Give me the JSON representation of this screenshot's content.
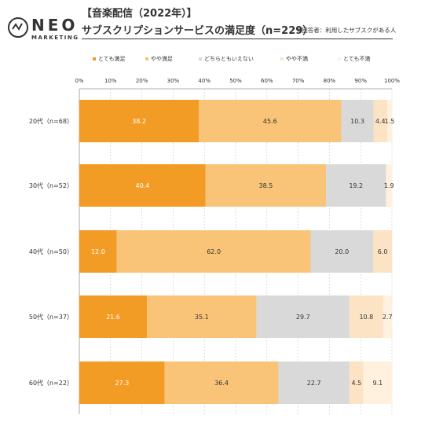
{
  "logo": {
    "name": "NEO",
    "sub": "MARKETING"
  },
  "title_line1": "【音楽配信（2022年）】",
  "title_line2": "サブスクリプションサービスの満足度（n=229）",
  "note": "※回答者：利用したサブスクがある人",
  "colors": {
    "s1": "#F39C25",
    "s2": "#F9C478",
    "s3": "#D9D9D9",
    "s4": "#FCE3C4",
    "s5": "#FFF1DE"
  },
  "chart_data": {
    "type": "bar",
    "orientation": "horizontal",
    "stacked": "100%",
    "categories": [
      "20代（n=68）",
      "30代（n=52）",
      "40代（n=50）",
      "50代（n=37）",
      "60代（n=22）"
    ],
    "x_ticks": [
      "0%",
      "10%",
      "20%",
      "30%",
      "40%",
      "50%",
      "60%",
      "70%",
      "80%",
      "90%",
      "100%"
    ],
    "xlim": [
      0,
      100
    ],
    "legend_position": "top",
    "series": [
      {
        "name": "とても満足",
        "values": [
          38.2,
          40.4,
          12.0,
          21.6,
          27.3
        ]
      },
      {
        "name": "やや満足",
        "values": [
          45.6,
          38.5,
          62.0,
          35.1,
          36.4
        ]
      },
      {
        "name": "どちらともいえない",
        "values": [
          10.3,
          19.2,
          20.0,
          29.7,
          22.7
        ]
      },
      {
        "name": "やや不満",
        "values": [
          4.4,
          0,
          6.0,
          10.8,
          4.5
        ]
      },
      {
        "name": "とても不満",
        "values": [
          1.5,
          1.9,
          0,
          2.7,
          9.1
        ]
      }
    ]
  }
}
